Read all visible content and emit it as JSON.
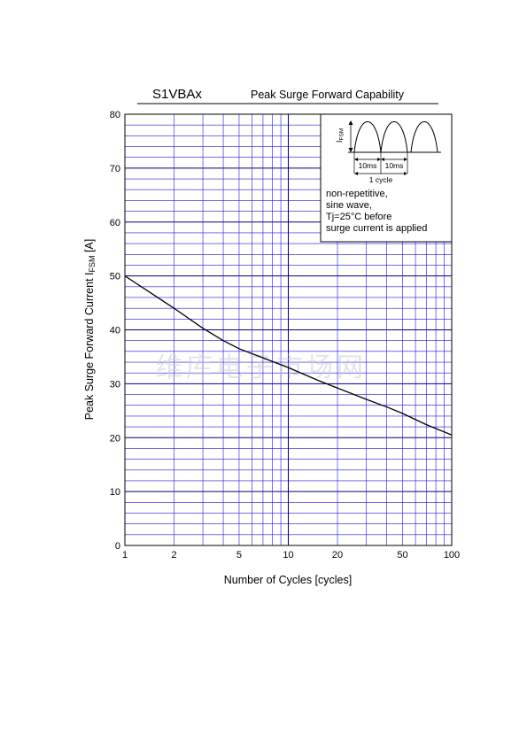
{
  "chart_data": {
    "type": "line",
    "title": "S1VBAx",
    "subtitle": "Peak Surge Forward Capability",
    "xlabel": "Number of Cycles  [cycles]",
    "ylabel_main": "Peak Surge Forward Current  I",
    "ylabel_sub": "FSM",
    "ylabel_unit": " [A]",
    "x_scale": "log",
    "xlim": [
      1,
      100
    ],
    "ylim": [
      0,
      80
    ],
    "x_ticks": [
      1,
      2,
      5,
      10,
      20,
      50,
      100
    ],
    "y_ticks": [
      0,
      10,
      20,
      30,
      40,
      50,
      60,
      70,
      80
    ],
    "grid": true,
    "series": [
      {
        "x": [
          1,
          1.5,
          2,
          3,
          4,
          5,
          7,
          10,
          15,
          20,
          30,
          40,
          50,
          70,
          100
        ],
        "y": [
          50,
          46.5,
          44,
          40.3,
          38,
          36.5,
          34.8,
          33,
          30.7,
          29.2,
          27.1,
          25.7,
          24.5,
          22.4,
          20.5
        ]
      }
    ]
  },
  "legend_box": {
    "lines": [
      "non-repetitive,",
      "sine wave,",
      "Tj=25°C before",
      "surge current is applied"
    ],
    "ifsm_label": "I",
    "ifsm_sub": "FSM",
    "half_cycle_label": "10ms",
    "cycle_label": "1 cycle"
  },
  "watermark": "维库电子市场网",
  "colors": {
    "grid": "#1a1adc",
    "curve": "#000000",
    "frame": "#000000"
  }
}
